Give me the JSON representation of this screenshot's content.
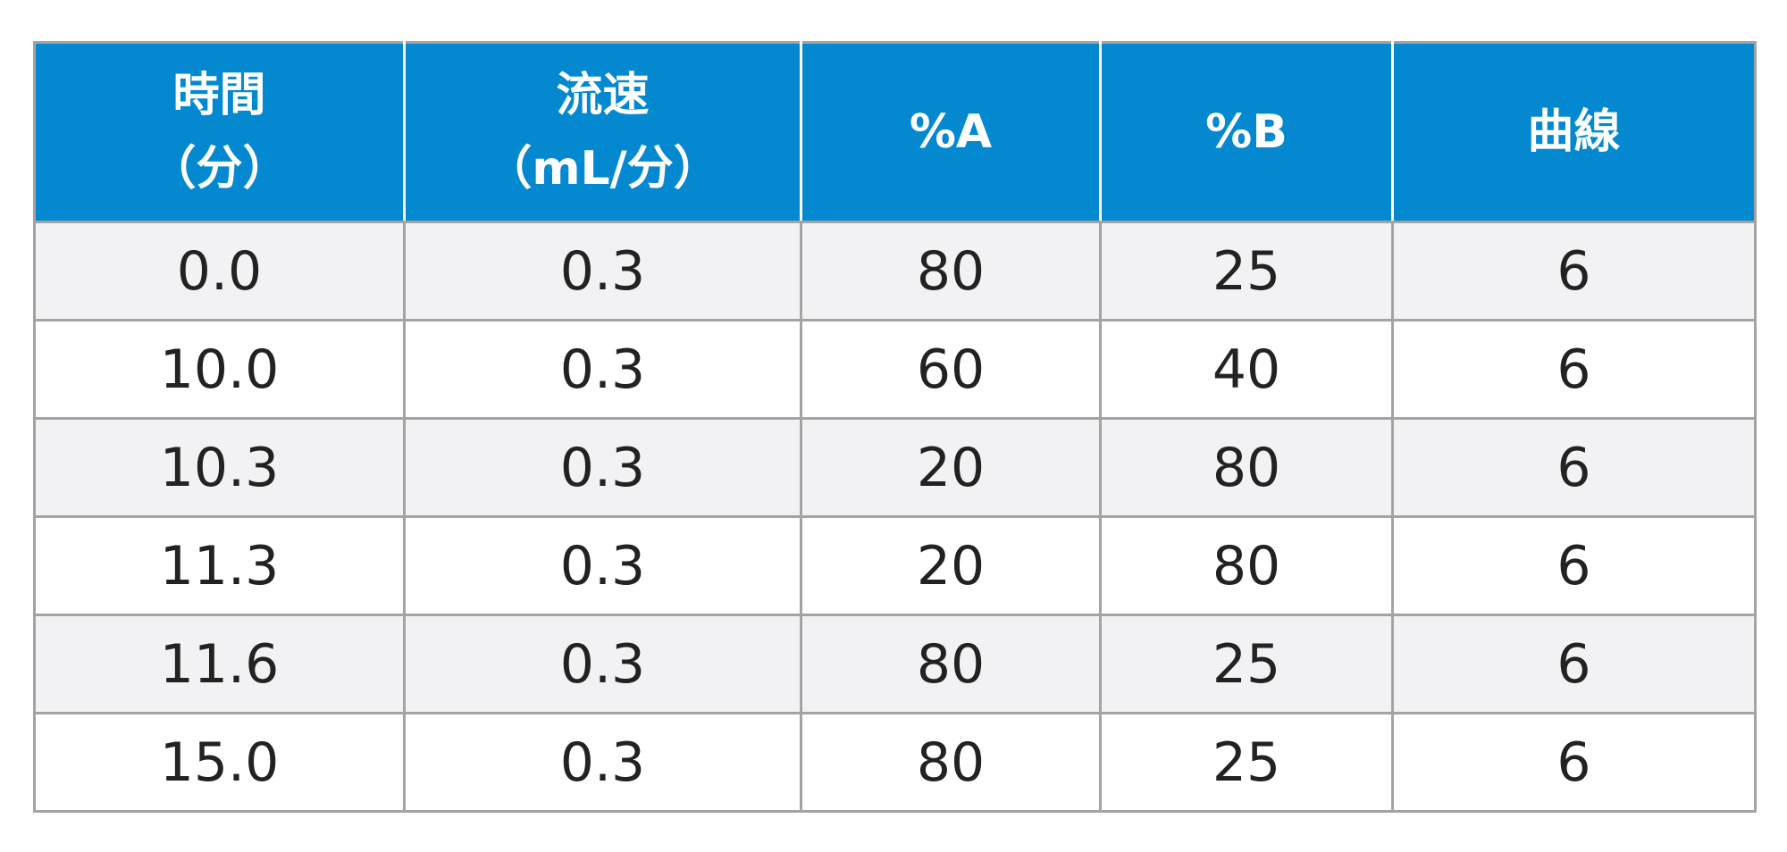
{
  "table": {
    "headers": [
      {
        "line1": "時間",
        "line2": "（分）"
      },
      {
        "line1": "流速",
        "line2": "（mL/分）"
      },
      {
        "line1": "%A",
        "line2": ""
      },
      {
        "line1": "%B",
        "line2": ""
      },
      {
        "line1": "曲線",
        "line2": ""
      }
    ],
    "rows": [
      [
        "0.0",
        "0.3",
        "80",
        "25",
        "6"
      ],
      [
        "10.0",
        "0.3",
        "60",
        "40",
        "6"
      ],
      [
        "10.3",
        "0.3",
        "20",
        "80",
        "6"
      ],
      [
        "11.3",
        "0.3",
        "20",
        "80",
        "6"
      ],
      [
        "11.6",
        "0.3",
        "80",
        "25",
        "6"
      ],
      [
        "15.0",
        "0.3",
        "80",
        "25",
        "6"
      ]
    ]
  },
  "colors": {
    "header_bg": "#0489d1",
    "header_text": "#ffffff",
    "row_alt_bg": "#f2f2f4",
    "border": "#a3a3a3",
    "cell_text": "#222222"
  }
}
